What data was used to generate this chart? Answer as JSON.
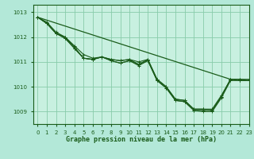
{
  "title": "Graphe pression niveau de la mer (hPa)",
  "background_color": "#b3e8d8",
  "plot_bg_color": "#c8f0e0",
  "grid_color": "#88ccaa",
  "line_color": "#1a5c1a",
  "xlim": [
    -0.5,
    23
  ],
  "ylim": [
    1008.5,
    1013.3
  ],
  "yticks": [
    1009,
    1010,
    1011,
    1012,
    1013
  ],
  "xticks": [
    0,
    1,
    2,
    3,
    4,
    5,
    6,
    7,
    8,
    9,
    10,
    11,
    12,
    13,
    14,
    15,
    16,
    17,
    18,
    19,
    20,
    21,
    22,
    23
  ],
  "series": [
    [
      1012.8,
      1012.6,
      1012.2,
      1012.0,
      1011.65,
      1011.3,
      1011.15,
      1011.2,
      1011.1,
      1011.05,
      1011.1,
      1010.9,
      1011.1,
      1010.3,
      1010.0,
      1009.5,
      1009.45,
      1009.1,
      1009.1,
      1009.05,
      1009.6,
      1010.3,
      1010.3,
      1010.25
    ],
    [
      1012.8,
      1012.55,
      1012.15,
      1011.95,
      1011.55,
      1011.15,
      1011.1,
      1011.2,
      1011.05,
      1010.95,
      1011.05,
      1010.85,
      1011.05,
      1010.25,
      1009.95,
      1009.45,
      1009.4,
      1009.05,
      1009.0,
      1009.0,
      1009.55,
      1010.25,
      1010.25,
      1010.25
    ],
    [
      1012.8,
      1012.55,
      1012.15,
      1011.95,
      1011.55,
      1011.15,
      1011.1,
      1011.2,
      1011.05,
      1010.95,
      1011.05,
      1010.9,
      1011.05,
      1010.25,
      1009.95,
      1009.45,
      1009.4,
      1009.05,
      1009.05,
      1009.05,
      1009.6,
      1010.3,
      1010.25,
      1010.25
    ],
    [
      1012.8,
      1012.55,
      1012.15,
      1012.0,
      1011.6,
      1011.15,
      1011.1,
      1011.2,
      1011.1,
      1011.05,
      1011.1,
      1011.0,
      1011.1,
      1010.3,
      1010.0,
      1009.5,
      1009.45,
      1009.1,
      1009.1,
      1009.1,
      1009.65,
      1010.3,
      1010.3,
      1010.3
    ]
  ],
  "straight_line": {
    "x": [
      0,
      21
    ],
    "y": [
      1012.8,
      1010.3
    ]
  }
}
